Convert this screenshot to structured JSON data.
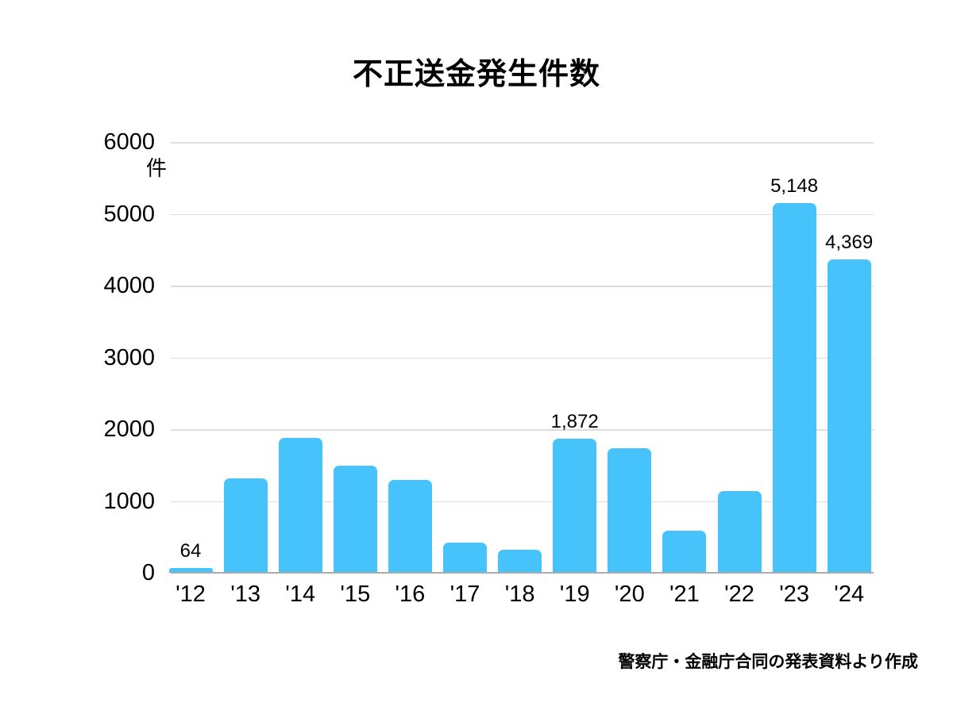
{
  "title": "不正送金発生件数",
  "y_axis": {
    "unit": "件"
  },
  "source_note": "警察庁・金融庁合同の発表資料より作成",
  "chart_data": {
    "type": "bar",
    "title": "不正送金発生件数",
    "categories": [
      "'12",
      "'13",
      "'14",
      "'15",
      "'16",
      "'17",
      "'18",
      "'19",
      "'20",
      "'21",
      "'22",
      "'23",
      "'24"
    ],
    "values": [
      64,
      1315,
      1876,
      1495,
      1291,
      425,
      322,
      1872,
      1734,
      584,
      1136,
      5148,
      4369
    ],
    "data_labels": [
      "64",
      "",
      "",
      "",
      "",
      "",
      "",
      "1,872",
      "",
      "",
      "",
      "5,148",
      "4,369"
    ],
    "ylabel": "件",
    "ylim": [
      0,
      6000
    ],
    "y_ticks": [
      0,
      1000,
      2000,
      3000,
      4000,
      5000,
      6000
    ],
    "grid": "horizontal",
    "legend": "none",
    "bar_color": "#46c3fb",
    "source_note": "警察庁・金融庁合同の発表資料より作成"
  },
  "colors": {
    "bar": "#46c3fb",
    "gridline": "#dedede",
    "axis_line": "#acacac",
    "text": "#000000",
    "background": "#ffffff"
  }
}
